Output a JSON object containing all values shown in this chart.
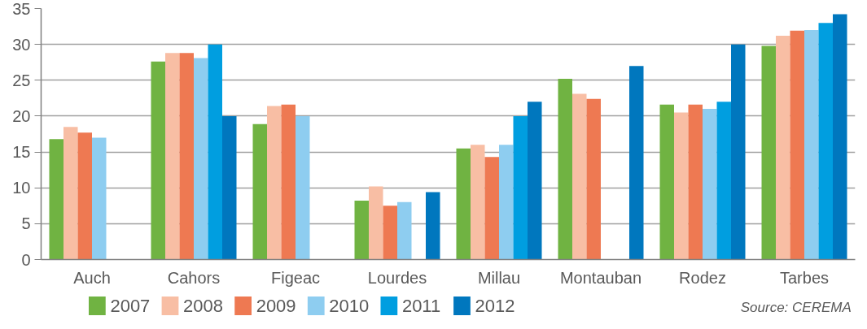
{
  "chart_data": {
    "type": "bar",
    "categories": [
      "Auch",
      "Cahors",
      "Figeac",
      "Lourdes",
      "Millau",
      "Montauban",
      "Rodez",
      "Tarbes"
    ],
    "series": [
      {
        "name": "2007",
        "color": "#70b342",
        "values": [
          16.8,
          27.6,
          18.9,
          8.2,
          15.5,
          25.2,
          21.6,
          29.8
        ]
      },
      {
        "name": "2008",
        "color": "#f8bea4",
        "values": [
          18.5,
          28.8,
          21.4,
          10.2,
          16,
          23.1,
          20.5,
          31.2
        ]
      },
      {
        "name": "2009",
        "color": "#ee7952",
        "values": [
          17.7,
          28.8,
          21.6,
          7.5,
          14.3,
          22.4,
          21.6,
          31.9
        ]
      },
      {
        "name": "2010",
        "color": "#8ecdf0",
        "values": [
          17,
          28.1,
          20,
          8,
          16,
          null,
          21,
          32
        ]
      },
      {
        "name": "2011",
        "color": "#009ee0",
        "values": [
          null,
          30,
          null,
          null,
          20,
          null,
          22,
          33
        ]
      },
      {
        "name": "2012",
        "color": "#0077be",
        "values": [
          null,
          20,
          null,
          9.4,
          22,
          27,
          30,
          34.2
        ]
      }
    ],
    "ylim": [
      0,
      35
    ],
    "yticks": [
      0,
      5,
      10,
      15,
      20,
      25,
      30,
      35
    ],
    "grid": "y",
    "legend": "bottom left",
    "annotations": [
      "Source: CEREMA"
    ]
  }
}
